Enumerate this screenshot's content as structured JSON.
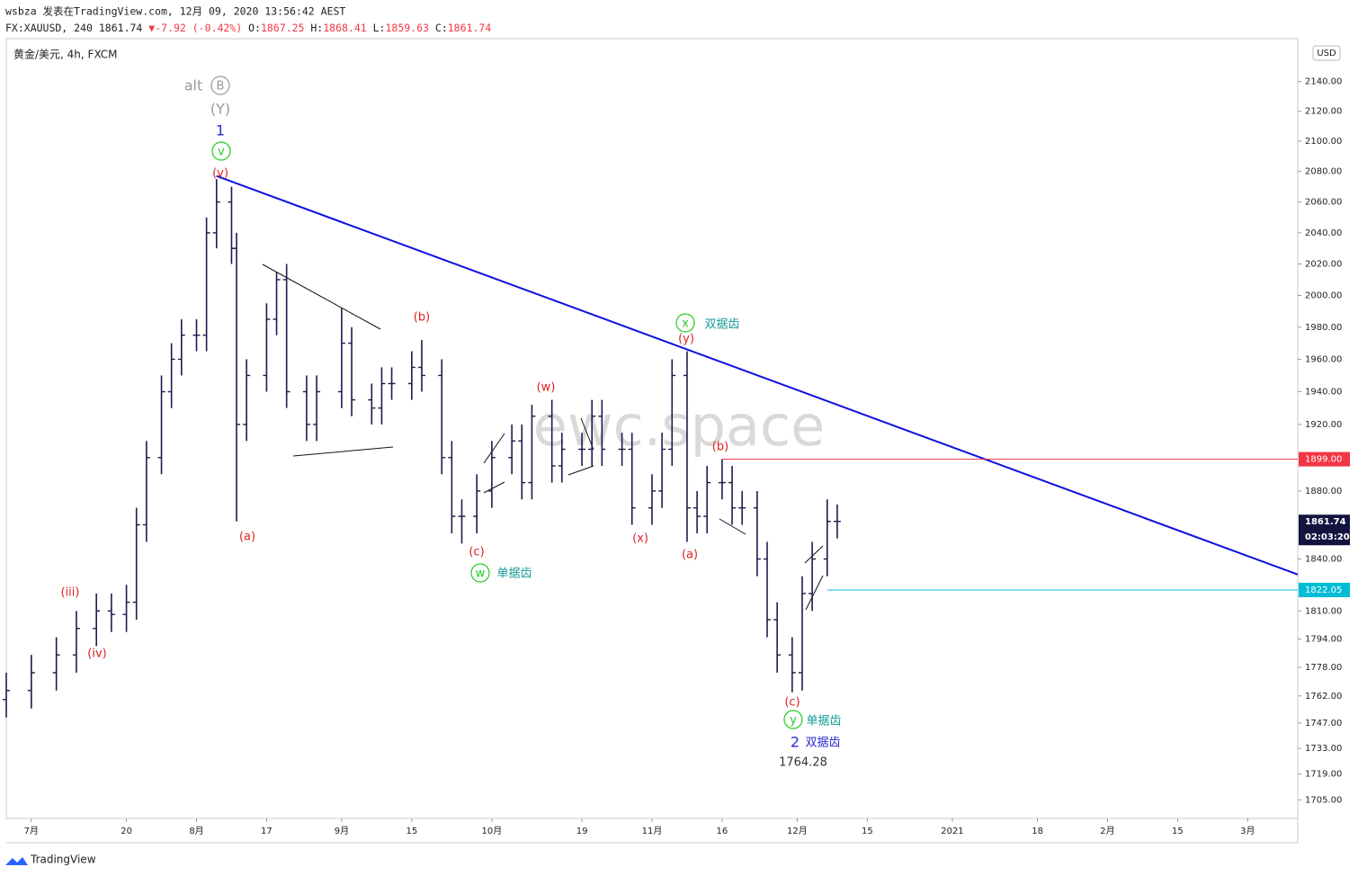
{
  "header": {
    "line1": "wsbza 发表在TradingView.com, 12月 09, 2020 13:56:42 AEST",
    "symbol": "FX:XAUUSD, 240",
    "last": "1861.74",
    "arrow": "▼",
    "change": "-7.92 (-0.42%)",
    "o_label": "O:",
    "o": "1867.25",
    "h_label": "H:",
    "h": "1868.41",
    "l_label": "L:",
    "l": "1859.63",
    "c_label": "C:",
    "c": "1861.74"
  },
  "chart_data": {
    "type": "candlestick",
    "title": "黄金/美元, 4h, FXCM",
    "watermark": "ewc.space",
    "currency": "USD",
    "brand": "TradingView",
    "log_scale": true,
    "color": "#1c1c4e",
    "x": [
      "2020-06-26",
      "2020-07-01",
      "2020-07-06",
      "2020-07-10",
      "2020-07-14",
      "2020-07-17",
      "2020-07-20",
      "2020-07-22",
      "2020-07-24",
      "2020-07-27",
      "2020-07-29",
      "2020-07-31",
      "2020-08-03",
      "2020-08-05",
      "2020-08-07",
      "2020-08-10",
      "2020-08-11",
      "2020-08-13",
      "2020-08-17",
      "2020-08-19",
      "2020-08-21",
      "2020-08-25",
      "2020-08-27",
      "2020-09-01",
      "2020-09-03",
      "2020-09-07",
      "2020-09-09",
      "2020-09-11",
      "2020-09-15",
      "2020-09-17",
      "2020-09-21",
      "2020-09-23",
      "2020-09-25",
      "2020-09-28",
      "2020-10-01",
      "2020-10-05",
      "2020-10-07",
      "2020-10-09",
      "2020-10-13",
      "2020-10-15",
      "2020-10-19",
      "2020-10-21",
      "2020-10-23",
      "2020-10-27",
      "2020-10-29",
      "2020-11-02",
      "2020-11-04",
      "2020-11-06",
      "2020-11-09",
      "2020-11-11",
      "2020-11-13",
      "2020-11-16",
      "2020-11-18",
      "2020-11-20",
      "2020-11-23",
      "2020-11-25",
      "2020-11-27",
      "2020-11-30",
      "2020-12-02",
      "2020-12-04",
      "2020-12-07",
      "2020-12-09"
    ],
    "open": [
      1760,
      1765,
      1775,
      1785,
      1800,
      1810,
      1808,
      1815,
      1860,
      1900,
      1940,
      1960,
      1975,
      1975,
      2040,
      2060,
      2030,
      1920,
      1950,
      1985,
      2010,
      1940,
      1920,
      1940,
      1970,
      1935,
      1930,
      1945,
      1945,
      1955,
      1950,
      1900,
      1865,
      1865,
      1880,
      1900,
      1910,
      1885,
      1925,
      1895,
      1905,
      1905,
      1925,
      1905,
      1905,
      1870,
      1880,
      1905,
      1950,
      1870,
      1865,
      1885,
      1885,
      1870,
      1870,
      1840,
      1805,
      1785,
      1775,
      1820,
      1840,
      1862
    ],
    "high": [
      1775,
      1785,
      1795,
      1810,
      1820,
      1820,
      1825,
      1870,
      1910,
      1950,
      1970,
      1985,
      1985,
      2050,
      2075,
      2070,
      2040,
      1960,
      1995,
      2015,
      2020,
      1950,
      1950,
      1992,
      1980,
      1945,
      1955,
      1955,
      1965,
      1972,
      1960,
      1910,
      1875,
      1890,
      1910,
      1920,
      1920,
      1932,
      1935,
      1915,
      1915,
      1935,
      1935,
      1915,
      1915,
      1890,
      1915,
      1960,
      1965,
      1880,
      1895,
      1899,
      1895,
      1880,
      1880,
      1850,
      1815,
      1795,
      1830,
      1850,
      1875,
      1872
    ],
    "low": [
      1750,
      1755,
      1765,
      1775,
      1790,
      1798,
      1798,
      1805,
      1850,
      1890,
      1930,
      1950,
      1965,
      1965,
      2030,
      2020,
      1862,
      1910,
      1940,
      1975,
      1930,
      1910,
      1910,
      1930,
      1925,
      1920,
      1920,
      1935,
      1935,
      1940,
      1890,
      1855,
      1849,
      1855,
      1870,
      1890,
      1875,
      1875,
      1885,
      1885,
      1895,
      1895,
      1895,
      1895,
      1860,
      1860,
      1870,
      1895,
      1850,
      1855,
      1855,
      1875,
      1860,
      1860,
      1830,
      1795,
      1775,
      1764,
      1765,
      1810,
      1830,
      1852
    ],
    "close": [
      1765,
      1775,
      1785,
      1800,
      1810,
      1808,
      1815,
      1860,
      1900,
      1940,
      1960,
      1975,
      1975,
      2040,
      2060,
      2030,
      1920,
      1950,
      1985,
      2010,
      1940,
      1920,
      1940,
      1970,
      1935,
      1930,
      1945,
      1945,
      1955,
      1950,
      1900,
      1865,
      1865,
      1880,
      1900,
      1910,
      1885,
      1925,
      1895,
      1905,
      1905,
      1925,
      1905,
      1905,
      1870,
      1880,
      1905,
      1950,
      1870,
      1865,
      1885,
      1885,
      1870,
      1870,
      1840,
      1805,
      1785,
      1775,
      1820,
      1840,
      1862,
      1862
    ],
    "xlim": [
      "2020-06-26",
      "2021-03-11"
    ],
    "xticks": [
      {
        "value": "2020-07-01",
        "label": "7月"
      },
      {
        "value": "2020-07-20",
        "label": "20"
      },
      {
        "value": "2020-08-03",
        "label": "8月"
      },
      {
        "value": "2020-08-17",
        "label": "17"
      },
      {
        "value": "2020-09-01",
        "label": "9月"
      },
      {
        "value": "2020-09-15",
        "label": "15"
      },
      {
        "value": "2020-10-01",
        "label": "10月"
      },
      {
        "value": "2020-10-19",
        "label": "19"
      },
      {
        "value": "2020-11-02",
        "label": "11月"
      },
      {
        "value": "2020-11-16",
        "label": "16"
      },
      {
        "value": "2020-12-01",
        "label": "12月"
      },
      {
        "value": "2020-12-15",
        "label": "15"
      },
      {
        "value": "2021-01-01",
        "label": "2021"
      },
      {
        "value": "2021-01-18",
        "label": "18"
      },
      {
        "value": "2021-02-01",
        "label": "2月"
      },
      {
        "value": "2021-02-15",
        "label": "15"
      },
      {
        "value": "2021-03-01",
        "label": "3月"
      }
    ],
    "ylim": [
      1695,
      2168
    ],
    "yticks": [
      {
        "value": 2140,
        "label": "2140.00"
      },
      {
        "value": 2120,
        "label": "2120.00"
      },
      {
        "value": 2100,
        "label": "2100.00"
      },
      {
        "value": 2080,
        "label": "2080.00"
      },
      {
        "value": 2060,
        "label": "2060.00"
      },
      {
        "value": 2040,
        "label": "2040.00"
      },
      {
        "value": 2020,
        "label": "2020.00"
      },
      {
        "value": 2000,
        "label": "2000.00"
      },
      {
        "value": 1980,
        "label": "1980.00"
      },
      {
        "value": 1960,
        "label": "1960.00"
      },
      {
        "value": 1940,
        "label": "1940.00"
      },
      {
        "value": 1920,
        "label": "1920.00"
      },
      {
        "value": 1880,
        "label": "1880.00"
      },
      {
        "value": 1840,
        "label": "1840.00"
      },
      {
        "value": 1810,
        "label": "1810.00"
      },
      {
        "value": 1794,
        "label": "1794.00"
      },
      {
        "value": 1778,
        "label": "1778.00"
      },
      {
        "value": 1762,
        "label": "1762.00"
      },
      {
        "value": 1747,
        "label": "1747.00"
      },
      {
        "value": 1733,
        "label": "1733.00"
      },
      {
        "value": 1719,
        "label": "1719.00"
      },
      {
        "value": 1705,
        "label": "1705.00"
      }
    ],
    "trendline": {
      "x": [
        "2020-08-07",
        "2021-03-11"
      ],
      "y": [
        2077,
        1831
      ],
      "color": "#1010e0"
    },
    "levels": [
      {
        "value": 1899,
        "label": "1899.00",
        "from": "2020-11-16",
        "color": "#f23645"
      },
      {
        "value": 1822.05,
        "label": "1822.05",
        "from": "2020-12-07",
        "color": "#00bcd4"
      }
    ],
    "last_price": {
      "value": 1861.74,
      "label": "1861.74",
      "countdown": "02:03:20"
    },
    "annotations": [
      {
        "text": "alt",
        "color": "#9a9a9a"
      },
      {
        "text": "B",
        "color": "#9a9a9a",
        "style": "circle"
      },
      {
        "text": "(Y)",
        "color": "#9a9a9a"
      },
      {
        "text": "1",
        "color": "#2a2acf"
      },
      {
        "text": "v",
        "color": "#22cc22",
        "style": "circle"
      },
      {
        "text": "(v)",
        "color": "#e02020"
      },
      {
        "text": "(a)",
        "color": "#e02020"
      },
      {
        "text": "(b)",
        "color": "#e02020"
      },
      {
        "text": "(c)",
        "color": "#e02020"
      },
      {
        "text": "w",
        "color": "#22cc22",
        "style": "circle"
      },
      {
        "text": "单据齿",
        "color": "#159a9a"
      },
      {
        "text": "(w)",
        "color": "#e02020"
      },
      {
        "text": "(x)",
        "color": "#e02020"
      },
      {
        "text": "x",
        "color": "#22cc22",
        "style": "circle"
      },
      {
        "text": "双据齿",
        "color": "#159a9a"
      },
      {
        "text": "(y)",
        "color": "#e02020"
      },
      {
        "text": "(a)",
        "color": "#e02020"
      },
      {
        "text": "(b)",
        "color": "#e02020"
      },
      {
        "text": "(c)",
        "color": "#e02020"
      },
      {
        "text": "y",
        "color": "#22cc22",
        "style": "circle"
      },
      {
        "text": "单据齿",
        "color": "#159a9a"
      },
      {
        "text": "2",
        "color": "#2a2acf"
      },
      {
        "text": "双据齿",
        "color": "#2a2acf"
      },
      {
        "text": "1764.28",
        "color": "#333333"
      },
      {
        "text": "(iii)",
        "color": "#e02020"
      },
      {
        "text": "(iv)",
        "color": "#e02020"
      }
    ]
  }
}
